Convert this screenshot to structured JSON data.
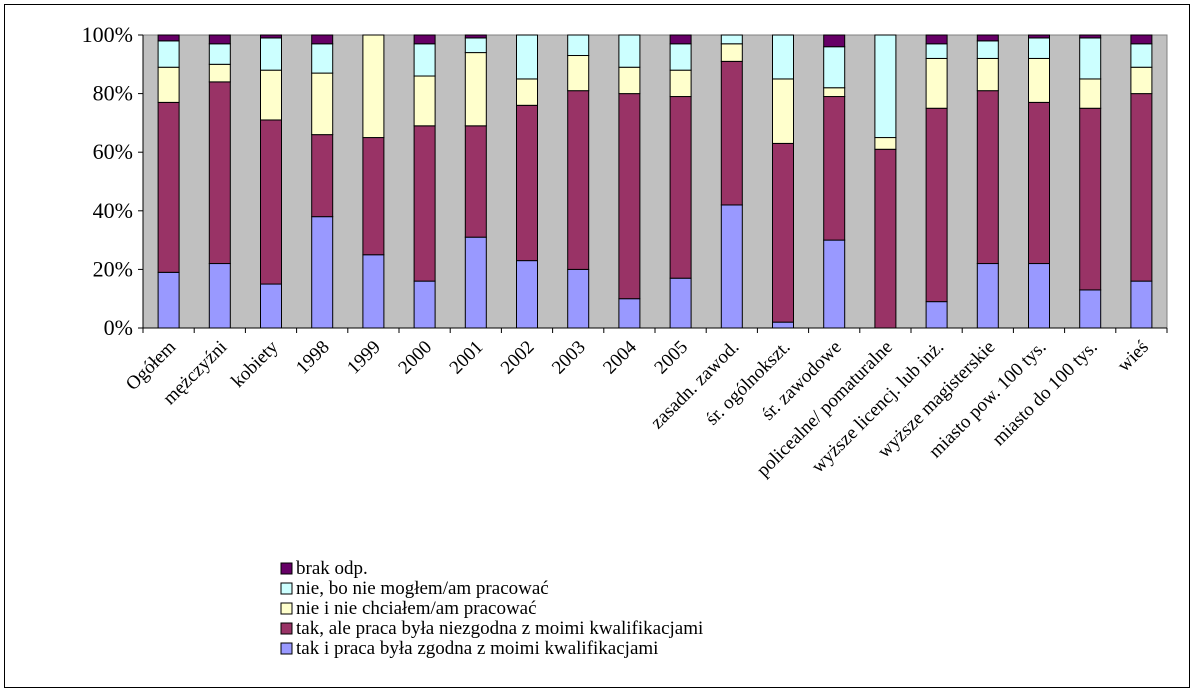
{
  "colors": {
    "plot_bg": "#c0c0c0",
    "brak": "#660066",
    "nie_mogl": "#ccffff",
    "nie_chcial": "#ffffcc",
    "tak_niezgodna": "#993366",
    "tak_zgodna": "#9999ff"
  },
  "chart_data": {
    "type": "bar",
    "stacked": true,
    "percent": true,
    "ylim": [
      0,
      100
    ],
    "yticks": [
      "0%",
      "20%",
      "40%",
      "60%",
      "80%",
      "100%"
    ],
    "grid": false,
    "legend_position": "bottom-left",
    "categories": [
      "Ogółem",
      "mężczyźni",
      "kobiety",
      "1998",
      "1999",
      "2000",
      "2001",
      "2002",
      "2003",
      "2004",
      "2005",
      "zasadn. zawod.",
      "śr. ogólnokszt.",
      "śr. zawodowe",
      "policealne/ pomaturalne",
      "wyższe licencj. lub inż.",
      "wyższe magisterskie",
      "miasto pow. 100 tys.",
      "miasto do 100 tys.",
      "wieś"
    ],
    "series": [
      {
        "name": "tak i praca była zgodna z moimi kwalifikacjami",
        "color_key": "tak_zgodna",
        "values": [
          19,
          22,
          15,
          38,
          25,
          16,
          31,
          23,
          20,
          10,
          17,
          42,
          2,
          30,
          0,
          9,
          22,
          22,
          13,
          16
        ]
      },
      {
        "name": "tak, ale praca była niezgodna z moimi kwalifikacjami",
        "color_key": "tak_niezgodna",
        "values": [
          58,
          62,
          56,
          28,
          40,
          53,
          38,
          53,
          61,
          70,
          62,
          49,
          61,
          49,
          61,
          66,
          59,
          55,
          62,
          64
        ]
      },
      {
        "name": "nie i nie chciałem/am pracować",
        "color_key": "nie_chcial",
        "values": [
          12,
          6,
          17,
          21,
          35,
          17,
          25,
          9,
          12,
          9,
          9,
          6,
          22,
          3,
          4,
          17,
          11,
          15,
          10,
          9
        ]
      },
      {
        "name": "nie, bo nie mogłem/am pracować",
        "color_key": "nie_mogl",
        "values": [
          9,
          7,
          11,
          10,
          0,
          11,
          5,
          15,
          7,
          11,
          9,
          3,
          15,
          14,
          35,
          5,
          6,
          7,
          14,
          8
        ]
      },
      {
        "name": "brak odp.",
        "color_key": "brak",
        "values": [
          2,
          3,
          1,
          3,
          0,
          3,
          1,
          0,
          0,
          0,
          3,
          0,
          0,
          4,
          0,
          3,
          2,
          1,
          1,
          3
        ]
      }
    ]
  }
}
